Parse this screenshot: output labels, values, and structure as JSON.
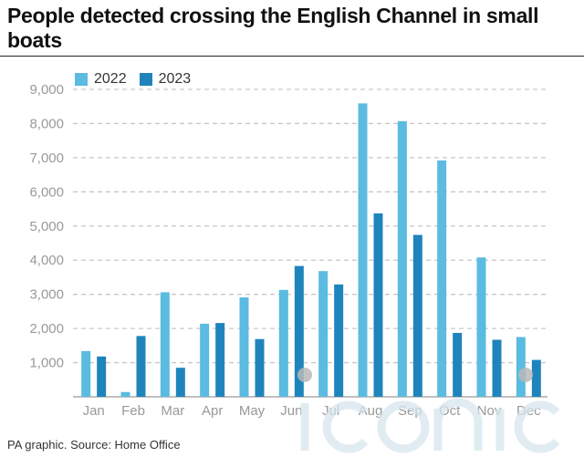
{
  "title": "People detected crossing the English Channel in small boats",
  "source": "PA graphic. Source: Home Office",
  "watermark": "iconic",
  "colors": {
    "series_2022": "#5bbbe0",
    "series_2023": "#1f84bc",
    "grid": "#c8c8c8",
    "axis_text": "#999999"
  },
  "chart_data": {
    "type": "bar",
    "title": "People detected crossing the English Channel in small boats",
    "categories": [
      "Jan",
      "Feb",
      "Mar",
      "Apr",
      "May",
      "Jun",
      "Jul",
      "Aug",
      "Sep",
      "Oct",
      "Nov",
      "Dec"
    ],
    "series": [
      {
        "name": "2022",
        "values": [
          1340,
          140,
          3060,
          2140,
          2910,
          3130,
          3680,
          8590,
          8070,
          6920,
          4080,
          1750
        ]
      },
      {
        "name": "2023",
        "values": [
          1180,
          1780,
          850,
          2160,
          1690,
          3830,
          3290,
          5370,
          4740,
          1870,
          1670,
          1080
        ]
      }
    ],
    "yticks": [
      "1,000",
      "2,000",
      "3,000",
      "4,000",
      "5,000",
      "6,000",
      "7,000",
      "8,000",
      "9,000"
    ],
    "ylim": [
      0,
      9000
    ],
    "xlabel": "",
    "ylabel": "",
    "grid": true,
    "legend_position": "top-left"
  }
}
